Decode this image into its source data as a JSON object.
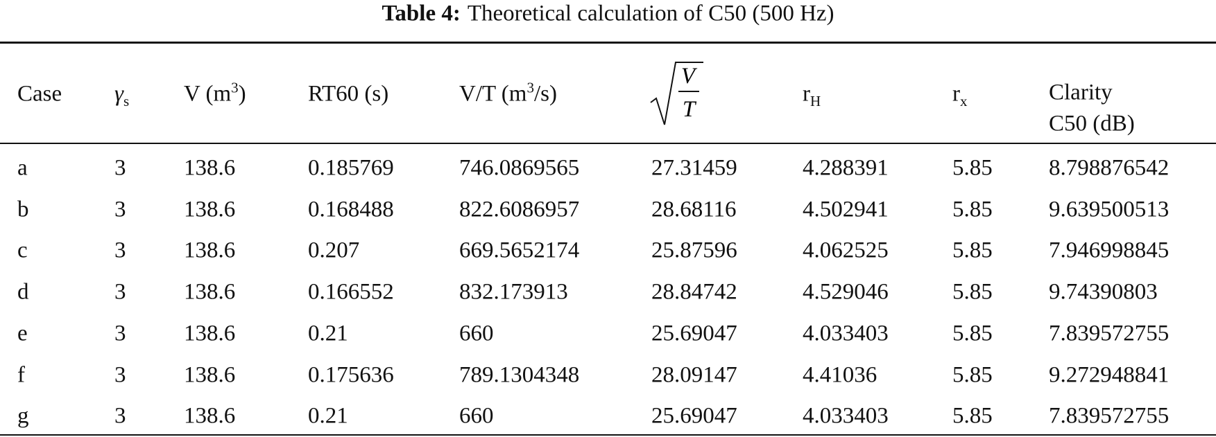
{
  "table": {
    "title": {
      "label": "Table 4:",
      "text": "Theoretical calculation of C50 (500 Hz)"
    },
    "headers": {
      "case": "Case",
      "gamma": {
        "symbol": "γ",
        "sub": "s"
      },
      "volume": {
        "text": "V (m",
        "sup": "3",
        "close": ")"
      },
      "rt60": "RT60 (s)",
      "vt": {
        "text": "V/T (m",
        "sup": "3",
        "close": "/s)"
      },
      "sqrt": {
        "numerator": "V",
        "denominator": "T"
      },
      "rh": {
        "symbol": "r",
        "sub": "H"
      },
      "rx": {
        "symbol": "r",
        "sub": "x"
      },
      "clarity": [
        "Clarity",
        "C50 (dB)"
      ]
    },
    "rows": [
      [
        "a",
        "3",
        "138.6",
        "0.185769",
        "746.0869565",
        "27.31459",
        "4.288391",
        "5.85",
        "8.798876542"
      ],
      [
        "b",
        "3",
        "138.6",
        "0.168488",
        "822.6086957",
        "28.68116",
        "4.502941",
        "5.85",
        "9.639500513"
      ],
      [
        "c",
        "3",
        "138.6",
        "0.207",
        "669.5652174",
        "25.87596",
        "4.062525",
        "5.85",
        "7.946998845"
      ],
      [
        "d",
        "3",
        "138.6",
        "0.166552",
        "832.173913",
        "28.84742",
        "4.529046",
        "5.85",
        "9.74390803"
      ],
      [
        "e",
        "3",
        "138.6",
        "0.21",
        "660",
        "25.69047",
        "4.033403",
        "5.85",
        "7.839572755"
      ],
      [
        "f",
        "3",
        "138.6",
        "0.175636",
        "789.1304348",
        "28.09147",
        "4.41036",
        "5.85",
        "9.272948841"
      ],
      [
        "g",
        "3",
        "138.6",
        "0.21",
        "660",
        "25.69047",
        "4.033403",
        "5.85",
        "7.839572755"
      ]
    ]
  }
}
